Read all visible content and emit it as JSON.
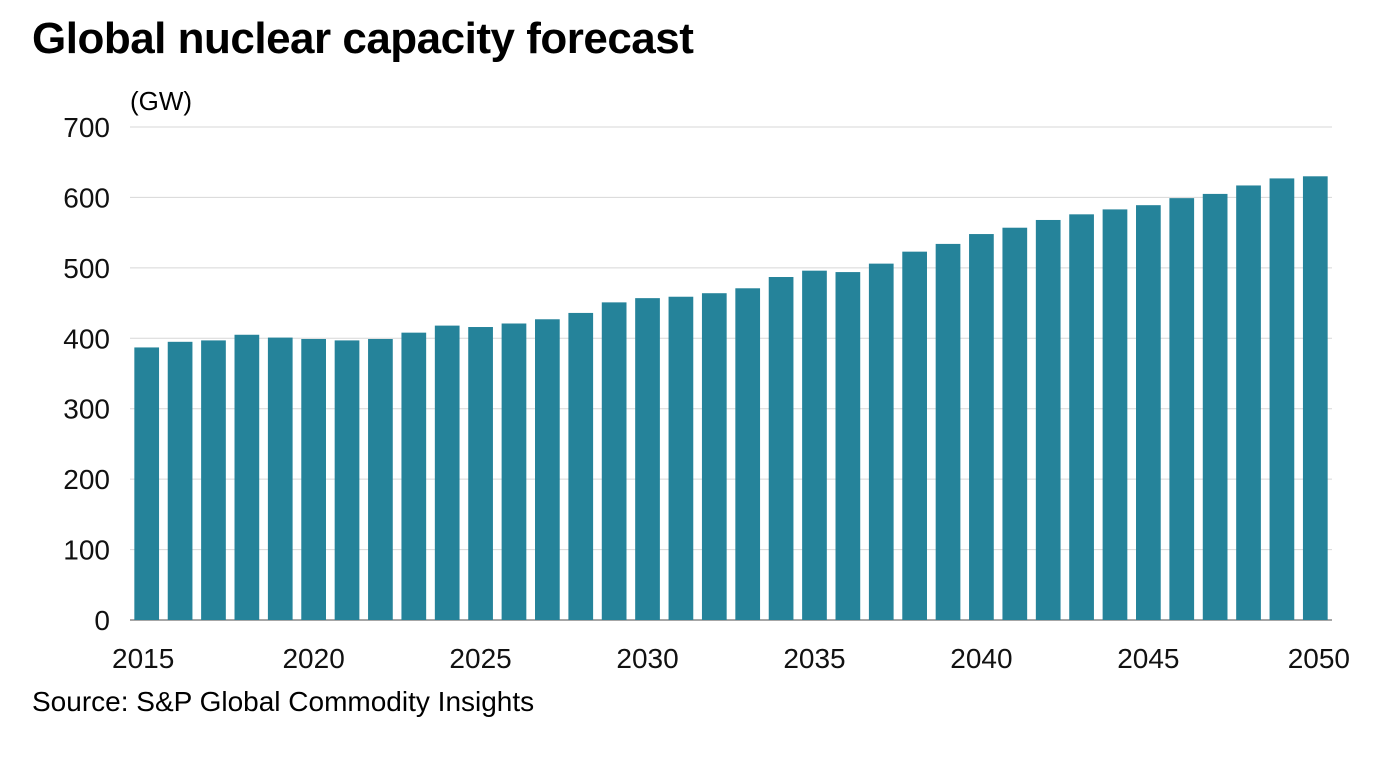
{
  "title": "Global nuclear capacity forecast",
  "source": "Source: S&P Global Commodity Insights",
  "colors": {
    "bar": "#25839a",
    "grid": "#d7d7d7",
    "axis": "#888888"
  },
  "chart_data": {
    "type": "bar",
    "title": "Global nuclear capacity forecast",
    "ylabel": "(GW)",
    "xlabel": "",
    "ylim": [
      0,
      700
    ],
    "yticks": [
      0,
      100,
      200,
      300,
      400,
      500,
      600,
      700
    ],
    "xtick_labels": [
      "2015",
      "2020",
      "2025",
      "2030",
      "2035",
      "2040",
      "2045",
      "2050"
    ],
    "grid": true,
    "categories": [
      2015,
      2016,
      2017,
      2018,
      2019,
      2020,
      2021,
      2022,
      2023,
      2024,
      2025,
      2026,
      2027,
      2028,
      2029,
      2030,
      2031,
      2032,
      2033,
      2034,
      2035,
      2036,
      2037,
      2038,
      2039,
      2040,
      2041,
      2042,
      2043,
      2044,
      2045,
      2046,
      2047,
      2048,
      2049,
      2050
    ],
    "values": [
      387,
      395,
      397,
      405,
      401,
      399,
      397,
      399,
      408,
      418,
      416,
      421,
      427,
      436,
      451,
      457,
      459,
      464,
      471,
      487,
      496,
      494,
      506,
      523,
      534,
      548,
      557,
      568,
      576,
      583,
      589,
      599,
      605,
      617,
      627,
      630
    ]
  }
}
